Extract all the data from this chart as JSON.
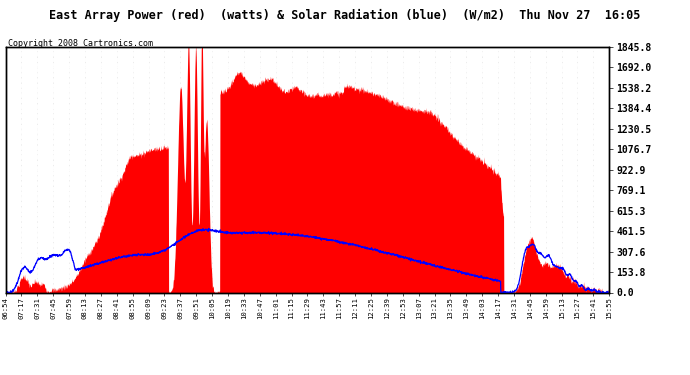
{
  "title": "East Array Power (red)  (watts) & Solar Radiation (blue)  (W/m2)  Thu Nov 27  16:05",
  "copyright_text": "Copyright 2008 Cartronics.com",
  "background_color": "#ffffff",
  "plot_background": "#ffffff",
  "grid_color": "#bbbbbb",
  "yticks": [
    0.0,
    153.8,
    307.6,
    461.5,
    615.3,
    769.1,
    922.9,
    1076.7,
    1230.5,
    1384.4,
    1538.2,
    1692.0,
    1845.8
  ],
  "ymax": 1845.8,
  "ymin": 0.0,
  "red_fill_color": "#ff0000",
  "blue_line_color": "#0000ff",
  "xtick_labels": [
    "06:54",
    "07:17",
    "07:31",
    "07:45",
    "07:59",
    "08:13",
    "08:27",
    "08:41",
    "08:55",
    "09:09",
    "09:23",
    "09:37",
    "09:51",
    "10:05",
    "10:19",
    "10:33",
    "10:47",
    "11:01",
    "11:15",
    "11:29",
    "11:43",
    "11:57",
    "12:11",
    "12:25",
    "12:39",
    "12:53",
    "13:07",
    "13:21",
    "13:35",
    "13:49",
    "14:03",
    "14:17",
    "14:31",
    "14:45",
    "14:59",
    "15:13",
    "15:27",
    "15:41",
    "15:55"
  ],
  "n_points": 2000
}
